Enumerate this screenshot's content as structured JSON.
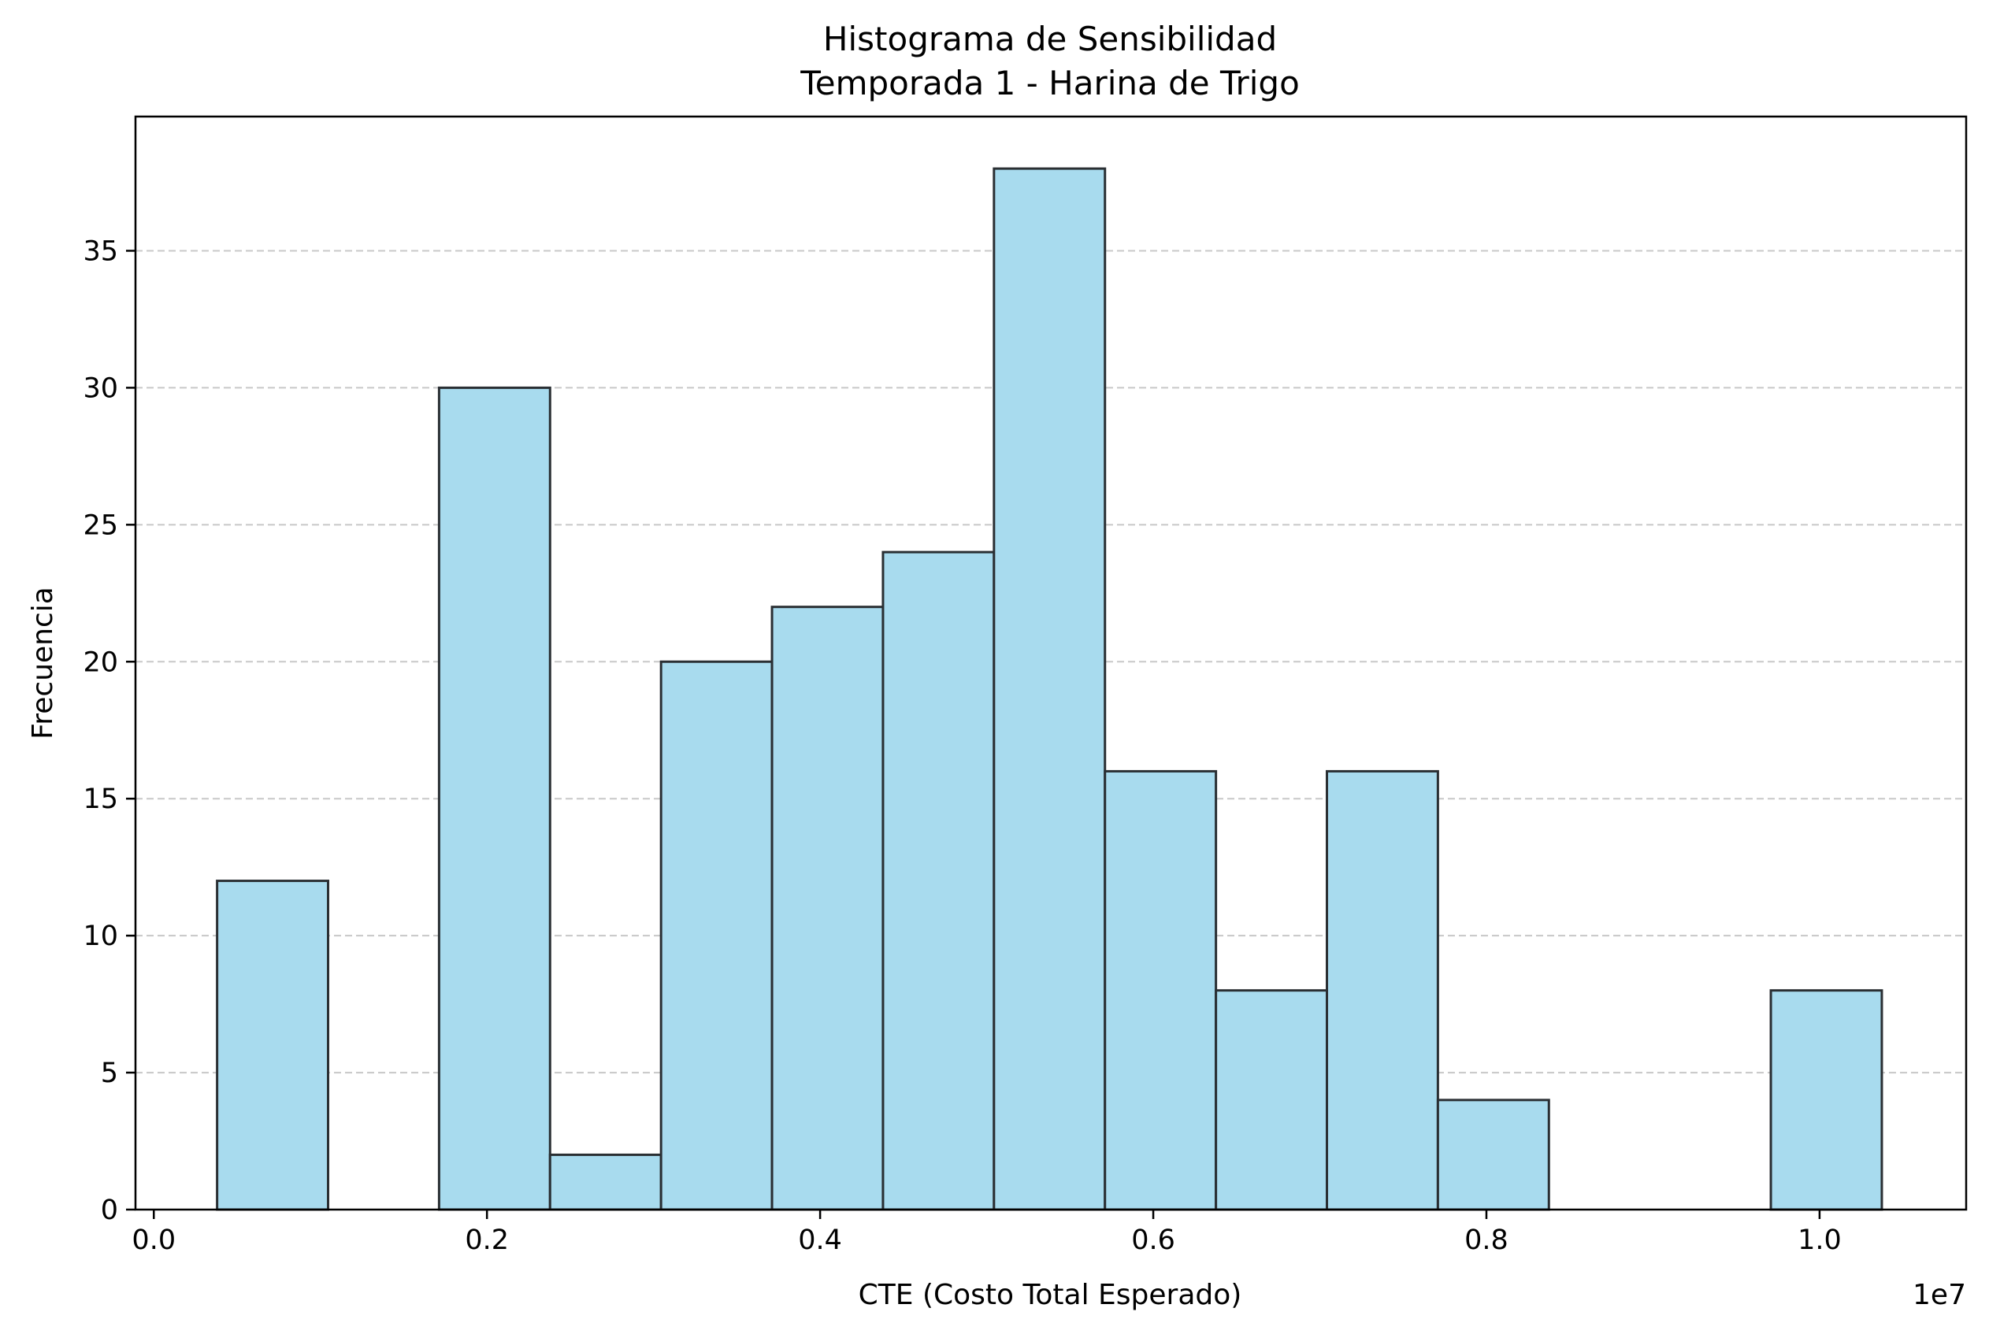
{
  "chart_data": {
    "type": "bar",
    "title_line1": "Histograma de Sensibilidad",
    "title_line2": "Temporada 1 - Harina de Trigo",
    "xlabel": "CTE (Costo Total Esperado)",
    "ylabel": "Frecuencia",
    "x_offset_label": "1e7",
    "x_scale": 10000000,
    "bin_edges": [
      380000,
      1046250,
      1712500,
      2378750,
      3045000,
      3711250,
      4377500,
      5043750,
      5710000,
      6376250,
      7042500,
      7708750,
      8375000,
      9041250,
      9707500,
      10373750
    ],
    "values": [
      12,
      0,
      30,
      2,
      20,
      22,
      24,
      38,
      16,
      8,
      16,
      4,
      0,
      0,
      8
    ],
    "xlim": [
      -110000,
      10880000
    ],
    "ylim": [
      0,
      39.9
    ],
    "x_ticks": [
      0,
      2000000,
      4000000,
      6000000,
      8000000,
      10000000
    ],
    "x_tick_labels": [
      "0.0",
      "0.2",
      "0.4",
      "0.6",
      "0.8",
      "1.0"
    ],
    "y_ticks": [
      0,
      5,
      10,
      15,
      20,
      25,
      30,
      35
    ],
    "y_tick_labels": [
      "0",
      "5",
      "10",
      "15",
      "20",
      "25",
      "30",
      "35"
    ],
    "grid": "y-dashed",
    "colors": {
      "bar_fill": "#a8dbee",
      "bar_edge": "#2a2f33",
      "grid": "#c8c8c8"
    }
  }
}
